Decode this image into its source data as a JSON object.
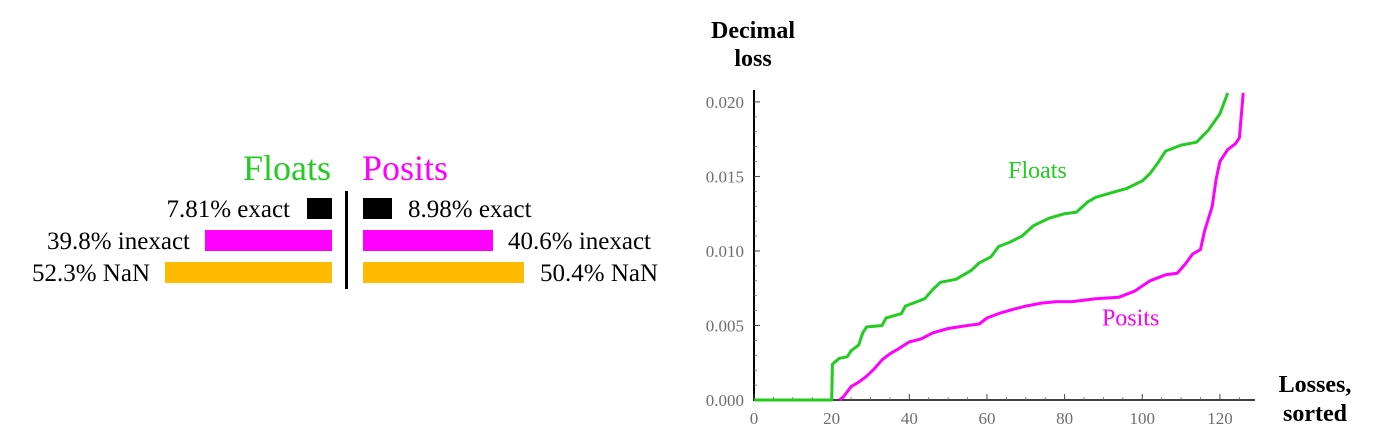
{
  "comparison": {
    "floats": {
      "title": "Floats",
      "rows": [
        {
          "label": "7.81% exact",
          "percent": 7.81
        },
        {
          "label": "39.8% inexact",
          "percent": 39.8
        },
        {
          "label": "52.3% NaN",
          "percent": 52.3
        }
      ]
    },
    "posits": {
      "title": "Posits",
      "rows": [
        {
          "label": "8.98% exact",
          "percent": 8.98
        },
        {
          "label": "40.6% inexact",
          "percent": 40.6
        },
        {
          "label": "50.4% NaN",
          "percent": 50.4
        }
      ]
    },
    "colors": {
      "floats_title": "#22cc22",
      "posits_title": "#ff00ff",
      "exact": "#000000",
      "inexact": "#ff00ff",
      "nan": "#ffbb00"
    }
  },
  "chart_data": {
    "type": "line",
    "title": "",
    "ylabel_line1": "Decimal",
    "ylabel_line2": "loss",
    "xlabel_line1": "Losses,",
    "xlabel_line2": "sorted",
    "xlim": [
      0,
      128
    ],
    "ylim": [
      0,
      0.0208
    ],
    "xticks": [
      0,
      20,
      40,
      60,
      80,
      100,
      120
    ],
    "xtick_labels": [
      "0",
      "20",
      "40",
      "60",
      "80",
      "100",
      "120"
    ],
    "yticks": [
      0,
      0.005,
      0.01,
      0.015,
      0.02
    ],
    "ytick_labels": [
      "0.000",
      "0.005",
      "0.010",
      "0.015",
      "0.020"
    ],
    "series": [
      {
        "name": "Floats",
        "color": "#22cc22",
        "label_at": [
          73,
          0.0149
        ],
        "points": [
          [
            0,
            0
          ],
          [
            20,
            0
          ],
          [
            20.2,
            0.0024
          ],
          [
            22,
            0.0028
          ],
          [
            24,
            0.0029
          ],
          [
            25,
            0.0033
          ],
          [
            26,
            0.0035
          ],
          [
            27,
            0.0037
          ],
          [
            28,
            0.0045
          ],
          [
            29,
            0.0049
          ],
          [
            33,
            0.005
          ],
          [
            34,
            0.0055
          ],
          [
            38,
            0.0058
          ],
          [
            39,
            0.0063
          ],
          [
            42,
            0.0066
          ],
          [
            44,
            0.0068
          ],
          [
            46,
            0.0074
          ],
          [
            48,
            0.0079
          ],
          [
            52,
            0.0081
          ],
          [
            56,
            0.0087
          ],
          [
            58,
            0.0092
          ],
          [
            61,
            0.0096
          ],
          [
            63,
            0.0103
          ],
          [
            66,
            0.0106
          ],
          [
            69,
            0.011
          ],
          [
            72,
            0.0117
          ],
          [
            76,
            0.0122
          ],
          [
            80,
            0.0125
          ],
          [
            83,
            0.0126
          ],
          [
            86,
            0.0133
          ],
          [
            88,
            0.0136
          ],
          [
            92,
            0.0139
          ],
          [
            96,
            0.0142
          ],
          [
            100,
            0.0147
          ],
          [
            102,
            0.0152
          ],
          [
            104,
            0.0159
          ],
          [
            106,
            0.0167
          ],
          [
            110,
            0.0171
          ],
          [
            114,
            0.0173
          ],
          [
            117,
            0.0181
          ],
          [
            120,
            0.0192
          ],
          [
            122,
            0.0206
          ]
        ]
      },
      {
        "name": "Posits",
        "color": "#ff00ff",
        "label_at": [
          97,
          0.005
        ],
        "points": [
          [
            22,
            0
          ],
          [
            23,
            0.0002
          ],
          [
            25,
            0.0009
          ],
          [
            27,
            0.0012
          ],
          [
            29,
            0.0016
          ],
          [
            31,
            0.0021
          ],
          [
            33,
            0.0027
          ],
          [
            35,
            0.0031
          ],
          [
            37,
            0.0034
          ],
          [
            40,
            0.0039
          ],
          [
            43,
            0.0041
          ],
          [
            46,
            0.0045
          ],
          [
            50,
            0.0048
          ],
          [
            55,
            0.005
          ],
          [
            58,
            0.0051
          ],
          [
            60,
            0.0055
          ],
          [
            63,
            0.0058
          ],
          [
            67,
            0.0061
          ],
          [
            70,
            0.0063
          ],
          [
            74,
            0.0065
          ],
          [
            78,
            0.0066
          ],
          [
            82,
            0.0066
          ],
          [
            88,
            0.0068
          ],
          [
            94,
            0.0069
          ],
          [
            98,
            0.0073
          ],
          [
            102,
            0.008
          ],
          [
            106,
            0.0084
          ],
          [
            109,
            0.0085
          ],
          [
            111,
            0.0091
          ],
          [
            113,
            0.0098
          ],
          [
            115,
            0.0101
          ],
          [
            116,
            0.0113
          ],
          [
            118,
            0.013
          ],
          [
            119,
            0.0148
          ],
          [
            120,
            0.016
          ],
          [
            122,
            0.0168
          ],
          [
            124,
            0.0172
          ],
          [
            125,
            0.0176
          ],
          [
            126,
            0.0206
          ]
        ]
      }
    ]
  }
}
